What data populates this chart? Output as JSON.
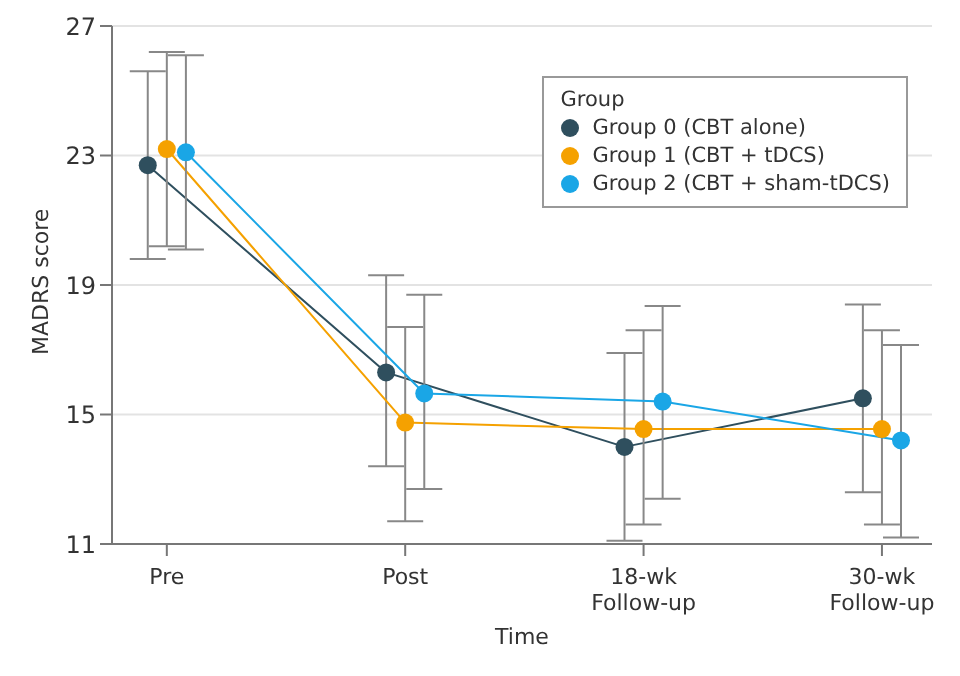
{
  "chart_data": {
    "type": "line",
    "xlabel": "Time",
    "ylabel": "MADRS score",
    "legend_title": "Group",
    "categories": [
      "Pre",
      "Post",
      "18-wk Follow-up",
      "30-wk Follow-up"
    ],
    "series": [
      {
        "name": "Group 0 (CBT alone)",
        "color": "#2f4f5e",
        "values": [
          22.7,
          16.3,
          14.0,
          15.5
        ],
        "errors": [
          [
            19.8,
            25.6
          ],
          [
            13.4,
            19.3
          ],
          [
            11.1,
            16.9
          ],
          [
            12.6,
            18.4
          ]
        ]
      },
      {
        "name": "Group 1 (CBT + tDCS)",
        "color": "#f5a100",
        "values": [
          23.2,
          14.75,
          14.55,
          14.55
        ],
        "errors": [
          [
            20.2,
            26.2
          ],
          [
            11.7,
            17.7
          ],
          [
            11.6,
            17.6
          ],
          [
            11.6,
            17.6
          ]
        ]
      },
      {
        "name": "Group 2 (CBT + sham-tDCS)",
        "color": "#1aa6e6",
        "values": [
          23.1,
          15.65,
          15.4,
          14.2
        ],
        "errors": [
          [
            20.1,
            26.1
          ],
          [
            12.7,
            18.7
          ],
          [
            12.4,
            18.35
          ],
          [
            11.2,
            17.15
          ]
        ]
      }
    ],
    "ylim": [
      11,
      27
    ],
    "yticks": [
      11,
      15,
      19,
      23,
      27
    ],
    "grid": "y",
    "legend": "top right",
    "marker": "circle"
  }
}
